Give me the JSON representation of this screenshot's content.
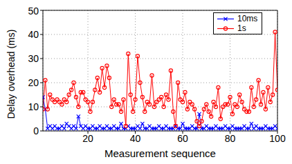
{
  "chart_data": {
    "type": "line",
    "x_label": "Measurement sequence",
    "y_label": "Delay overhead (ms)",
    "x": [
      1,
      2,
      3,
      4,
      5,
      6,
      7,
      8,
      9,
      10,
      11,
      12,
      13,
      14,
      15,
      16,
      17,
      18,
      19,
      20,
      21,
      22,
      23,
      24,
      25,
      26,
      27,
      28,
      29,
      30,
      31,
      32,
      33,
      34,
      35,
      36,
      37,
      38,
      39,
      40,
      41,
      42,
      43,
      44,
      45,
      46,
      47,
      48,
      49,
      50,
      51,
      52,
      53,
      54,
      55,
      56,
      57,
      58,
      59,
      60,
      61,
      62,
      63,
      64,
      65,
      66,
      67,
      68,
      69,
      70,
      71,
      72,
      73,
      74,
      75,
      76,
      77,
      78,
      79,
      80,
      81,
      82,
      83,
      84,
      85,
      86,
      87,
      88,
      89,
      90,
      91,
      92,
      93,
      94,
      95,
      96,
      97,
      98,
      99,
      100
    ],
    "series": [
      {
        "name": "10ms",
        "color": "#0000ff",
        "marker": "x",
        "values": [
          14,
          9,
          1,
          2,
          1,
          2,
          1,
          1,
          2,
          1,
          3,
          2,
          1,
          2,
          1,
          6,
          2,
          1,
          2,
          1,
          1,
          2,
          1,
          1,
          2,
          1,
          1,
          2,
          1,
          1,
          2,
          1,
          1,
          3,
          1,
          1,
          2,
          1,
          1,
          1,
          2,
          1,
          3,
          1,
          1,
          2,
          1,
          1,
          1,
          2,
          1,
          1,
          2,
          1,
          1,
          1,
          2,
          1,
          1,
          3,
          1,
          1,
          1,
          2,
          1,
          1,
          7,
          1,
          1,
          2,
          1,
          1,
          1,
          2,
          1,
          1,
          1,
          2,
          1,
          1,
          2,
          1,
          1,
          1,
          1,
          2,
          1,
          1,
          3,
          1,
          2,
          1,
          1,
          1,
          2,
          1,
          1,
          1,
          2,
          1
        ]
      },
      {
        "name": "1s",
        "color": "#ff0000",
        "marker": "circle",
        "values": [
          9,
          21,
          9,
          15,
          13,
          12,
          13,
          12,
          11,
          13,
          12,
          15,
          17,
          20,
          14,
          10,
          16,
          16,
          13,
          12,
          8,
          12,
          17,
          22,
          16,
          26,
          18,
          27,
          22,
          10,
          13,
          11,
          11,
          8,
          13,
          2,
          32,
          15,
          8,
          13,
          31,
          20,
          14,
          8,
          12,
          11,
          23,
          10,
          12,
          13,
          14,
          10,
          15,
          13,
          25,
          8,
          2,
          20,
          13,
          12,
          16,
          9,
          12,
          11,
          9,
          4,
          2,
          4,
          9,
          11,
          8,
          6,
          12,
          10,
          18,
          5,
          10,
          11,
          11,
          14,
          7,
          11,
          10,
          15,
          12,
          9,
          8,
          8,
          18,
          10,
          13,
          21,
          11,
          16,
          9,
          18,
          12,
          15,
          41,
          17
        ]
      }
    ],
    "xlim": [
      1,
      100
    ],
    "xticks": [
      20,
      40,
      60,
      80,
      100
    ],
    "ylim": [
      0,
      50
    ],
    "yticks": [
      0,
      10,
      20,
      30,
      40,
      50
    ],
    "grid": true,
    "legend": "upper right"
  }
}
